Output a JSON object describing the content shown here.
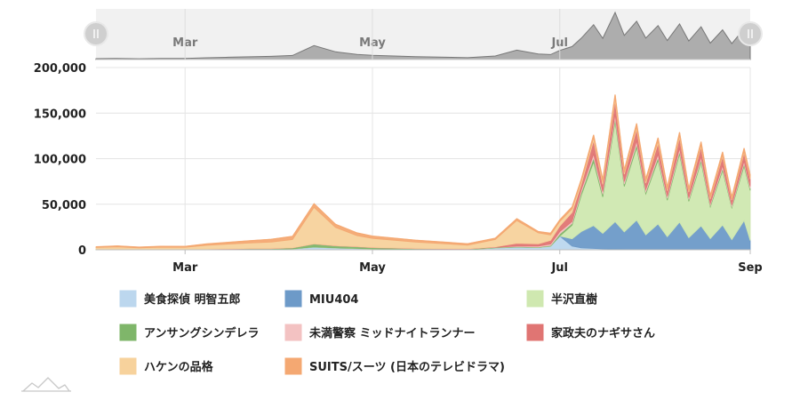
{
  "chart_data": {
    "type": "area",
    "stacked": true,
    "title": "",
    "xlabel": "",
    "ylabel": "",
    "ylim": [
      0,
      200000
    ],
    "yticks": [
      0,
      50000,
      100000,
      150000,
      200000
    ],
    "ytick_labels": [
      "0",
      "50,000",
      "100,000",
      "150,000",
      "200,000"
    ],
    "xlim": [
      "2020-02-01",
      "2020-09-01"
    ],
    "xticks": [
      "2020-03-01",
      "2020-05-01",
      "2020-07-01",
      "2020-09-01"
    ],
    "xtick_labels": [
      "Mar",
      "May",
      "Jul",
      "Sep"
    ],
    "navigator_labels": [
      "Mar",
      "May",
      "Jul"
    ],
    "grid": true,
    "legend_position": "bottom",
    "x": [
      "2020-02-01",
      "2020-02-08",
      "2020-02-15",
      "2020-02-22",
      "2020-03-01",
      "2020-03-08",
      "2020-03-15",
      "2020-03-22",
      "2020-03-29",
      "2020-04-05",
      "2020-04-12",
      "2020-04-19",
      "2020-04-26",
      "2020-05-01",
      "2020-05-15",
      "2020-06-01",
      "2020-06-10",
      "2020-06-17",
      "2020-06-24",
      "2020-06-28",
      "2020-07-01",
      "2020-07-05",
      "2020-07-08",
      "2020-07-12",
      "2020-07-15",
      "2020-07-19",
      "2020-07-22",
      "2020-07-26",
      "2020-07-29",
      "2020-08-02",
      "2020-08-05",
      "2020-08-09",
      "2020-08-12",
      "2020-08-16",
      "2020-08-19",
      "2020-08-23",
      "2020-08-26",
      "2020-08-30",
      "2020-09-01"
    ],
    "series": [
      {
        "name": "美食探偵 明智五郎",
        "color": "#bcd7ee",
        "values": [
          200,
          300,
          300,
          300,
          300,
          400,
          500,
          600,
          700,
          1000,
          3000,
          2000,
          1500,
          1000,
          500,
          300,
          2000,
          3000,
          2500,
          4000,
          15000,
          4000,
          2000,
          1500,
          1000,
          800,
          600,
          500,
          400,
          300,
          300,
          300,
          200,
          200,
          200,
          100,
          100,
          100,
          100
        ]
      },
      {
        "name": "MIU404",
        "color": "#6d9ac8",
        "values": [
          0,
          0,
          0,
          0,
          0,
          0,
          0,
          0,
          0,
          0,
          0,
          0,
          0,
          0,
          0,
          0,
          0,
          0,
          0,
          0,
          0,
          8000,
          18000,
          25000,
          17000,
          30000,
          19000,
          32000,
          16000,
          28000,
          14000,
          30000,
          13000,
          26000,
          12000,
          27000,
          11000,
          32000,
          10000
        ]
      },
      {
        "name": "半沢直樹",
        "color": "#cfe8b0",
        "values": [
          0,
          0,
          0,
          0,
          0,
          0,
          0,
          0,
          0,
          0,
          0,
          0,
          0,
          0,
          0,
          0,
          0,
          0,
          0,
          0,
          0,
          15000,
          40000,
          70000,
          40000,
          110000,
          50000,
          80000,
          45000,
          70000,
          40000,
          75000,
          40000,
          70000,
          35000,
          60000,
          35000,
          60000,
          55000
        ]
      },
      {
        "name": "アンサングシンデレラ",
        "color": "#7fb66a",
        "values": [
          300,
          400,
          300,
          500,
          400,
          500,
          700,
          900,
          800,
          1200,
          3500,
          2500,
          2000,
          1500,
          1000,
          800,
          700,
          600,
          500,
          800,
          2500,
          2000,
          3000,
          4500,
          2800,
          4000,
          2500,
          3500,
          2200,
          3200,
          2000,
          3000,
          1800,
          2800,
          1600,
          2500,
          1500,
          2600,
          2000
        ]
      },
      {
        "name": "未満警察 ミッドナイトランナー",
        "color": "#f3c2c2",
        "values": [
          0,
          0,
          0,
          0,
          0,
          0,
          0,
          0,
          0,
          0,
          0,
          0,
          0,
          0,
          0,
          0,
          0,
          500,
          1000,
          1500,
          2500,
          2000,
          3000,
          4000,
          3000,
          4000,
          2800,
          3600,
          2600,
          3400,
          2400,
          3200,
          2200,
          3000,
          2000,
          2800,
          1800,
          2800,
          2500
        ]
      },
      {
        "name": "家政夫のナギサさん",
        "color": "#e07573",
        "values": [
          0,
          0,
          0,
          0,
          0,
          0,
          0,
          0,
          0,
          0,
          0,
          0,
          0,
          0,
          0,
          0,
          500,
          3000,
          2500,
          4000,
          6000,
          10000,
          6000,
          15000,
          8000,
          15000,
          8000,
          13000,
          7000,
          12000,
          6000,
          12000,
          6000,
          11000,
          5000,
          10000,
          5000,
          9000,
          8000
        ]
      },
      {
        "name": "ハケンの品格",
        "color": "#f7d29c",
        "values": [
          2000,
          2500,
          1500,
          2000,
          2000,
          4000,
          5000,
          6000,
          7000,
          9000,
          40000,
          20000,
          12000,
          10000,
          7000,
          4000,
          8000,
          25000,
          12000,
          6000,
          5000,
          4000,
          3000,
          3000,
          2500,
          3000,
          2000,
          2500,
          2000,
          2500,
          1500,
          2000,
          1500,
          2000,
          1200,
          1500,
          1000,
          1500,
          1200
        ]
      },
      {
        "name": "SUITS/スーツ (日本のテレビドラマ)",
        "color": "#f4a872",
        "values": [
          800,
          1000,
          800,
          1000,
          1000,
          1500,
          2000,
          2500,
          3000,
          3500,
          4000,
          3500,
          3000,
          2500,
          2000,
          1500,
          1500,
          2000,
          1500,
          1800,
          2000,
          2000,
          2500,
          3000,
          2500,
          3500,
          2500,
          3500,
          2500,
          3500,
          2500,
          3500,
          2500,
          3500,
          2500,
          3500,
          2500,
          3500,
          3000
        ]
      }
    ]
  },
  "legend": [
    "美食探偵 明智五郎",
    "MIU404",
    "半沢直樹",
    "アンサングシンデレラ",
    "未満警察 ミッドナイトランナー",
    "家政夫のナギサさん",
    "ハケンの品格",
    "SUITS/スーツ (日本のテレビドラマ)"
  ],
  "navigator": {
    "left_handle_icon": "grip-lines-icon",
    "right_handle_icon": "grip-lines-icon",
    "fill_color": "#9c9c9c"
  },
  "logo_icon": "mountain-logo-icon"
}
